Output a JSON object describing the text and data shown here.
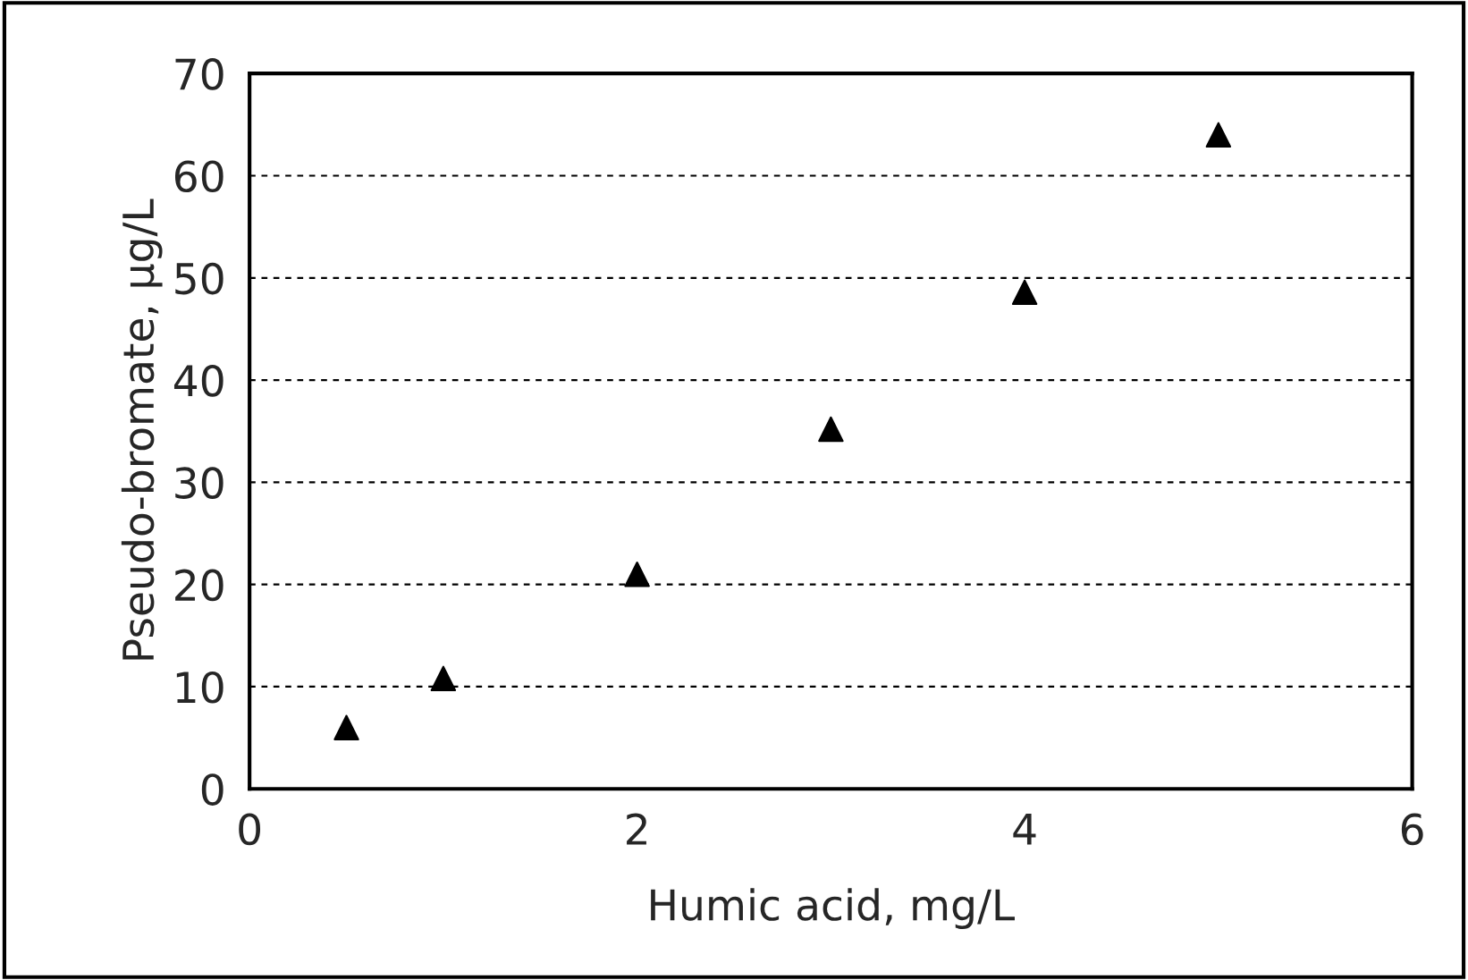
{
  "chart_data": {
    "type": "scatter",
    "xlabel": "Humic acid, mg/L",
    "ylabel": "Pseudo-bromate, µg/L",
    "x": [
      0.5,
      1,
      2,
      3,
      4,
      5
    ],
    "series": [
      {
        "color": "#000000",
        "values": [
          6.0,
          10.8,
          21.0,
          35.2,
          48.6,
          64.0
        ]
      }
    ],
    "xlim": [
      0,
      6
    ],
    "xticks": [
      0,
      2,
      4,
      6
    ],
    "ylim": [
      0,
      70
    ],
    "yticks": [
      0,
      10,
      20,
      30,
      40,
      50,
      60,
      70
    ],
    "grid": "y",
    "marker": "triangle"
  }
}
